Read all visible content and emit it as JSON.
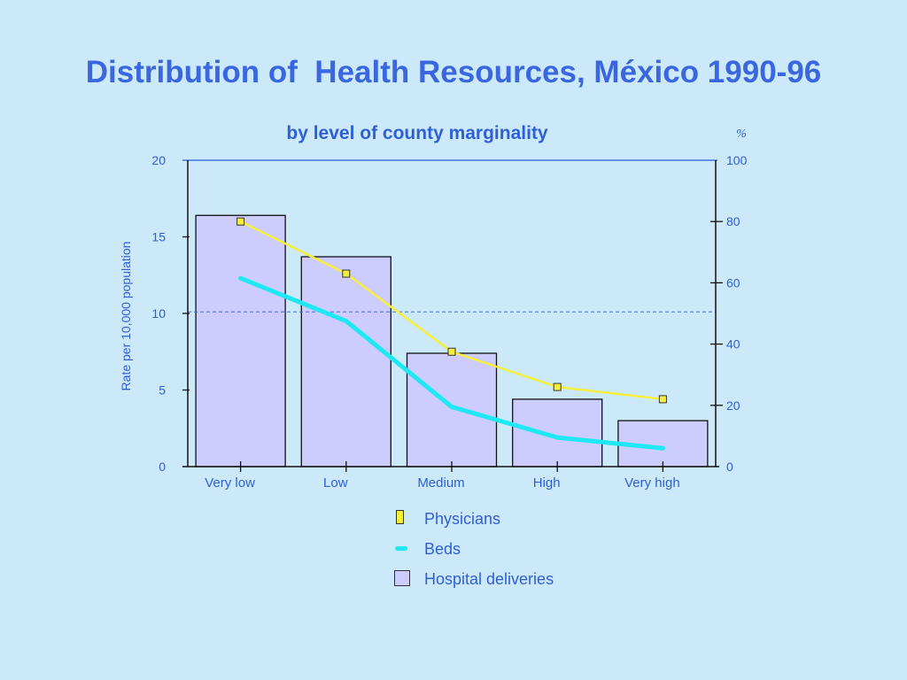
{
  "title": "Distribution of  Health Resources, México 1990-96",
  "colors": {
    "background": "#cce9fa",
    "title": "#3a67e0",
    "text": "#2f5fd7",
    "bars": "#ccccff",
    "physicians": "#f7ef3a",
    "beds": "#1ee8f3",
    "reference_line": "#4a6fe0"
  },
  "chart_data": {
    "type": "bar",
    "title": "by level of county marginality",
    "xlabel": "",
    "ylabel": "Rate per 10,000  population",
    "y2label": "%",
    "categories": [
      "Very low",
      "Low",
      "Medium",
      "High",
      "Very high"
    ],
    "ylim": [
      0,
      20
    ],
    "yticks": [
      0,
      5,
      10,
      15,
      20
    ],
    "y2lim": [
      0,
      100
    ],
    "y2ticks": [
      0,
      20,
      40,
      60,
      80,
      100
    ],
    "reference_line_y": 10.1,
    "grid": false,
    "legend_position": "bottom",
    "series": [
      {
        "name": "Hospital deliveries",
        "type": "bar",
        "axis": "right",
        "values": [
          82,
          68.5,
          37,
          22,
          15
        ]
      },
      {
        "name": "Physicians",
        "type": "line",
        "axis": "left",
        "values": [
          16.0,
          12.6,
          7.5,
          5.2,
          4.4
        ]
      },
      {
        "name": "Beds",
        "type": "line",
        "axis": "left",
        "values": [
          12.3,
          9.5,
          3.9,
          1.9,
          1.2
        ]
      }
    ]
  }
}
